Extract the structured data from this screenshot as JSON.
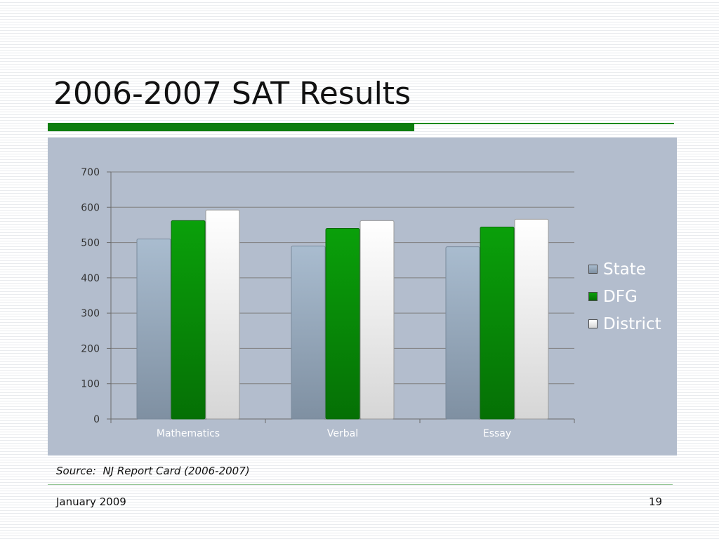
{
  "slide": {
    "title": "2006-2007 SAT Results",
    "source_label": "Source:",
    "source_text": "NJ Report Card (2006-2007)",
    "footer_date": "January 2009",
    "page_number": "19"
  },
  "colors": {
    "title_bar": "#0e7d0e",
    "chart_background": "#b3bdcd",
    "gridline": "#7f7f7f"
  },
  "chart_data": {
    "type": "bar",
    "title": "",
    "xlabel": "",
    "ylabel": "",
    "categories": [
      "Mathematics",
      "Verbal",
      "Essay"
    ],
    "ylim": [
      0,
      700
    ],
    "yticks": [
      0,
      100,
      200,
      300,
      400,
      500,
      600,
      700
    ],
    "grid": true,
    "legend_position": "right",
    "series": [
      {
        "name": "State",
        "values": [
          510,
          490,
          488
        ],
        "color": "#a3b4c8"
      },
      {
        "name": "DFG",
        "values": [
          562,
          540,
          544
        ],
        "color": "#0a8f0a"
      },
      {
        "name": "District",
        "values": [
          592,
          562,
          566
        ],
        "color": "#ffffff"
      }
    ]
  }
}
